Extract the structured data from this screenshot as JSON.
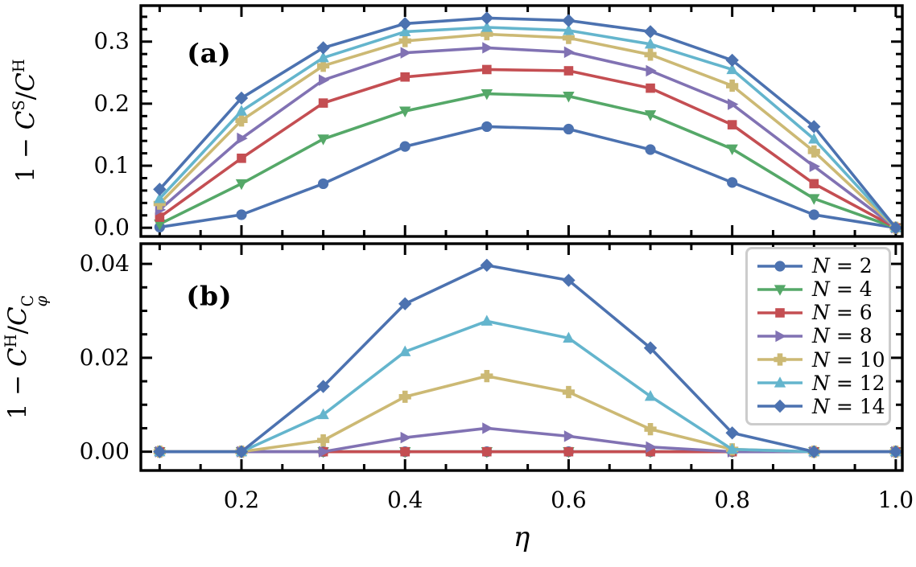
{
  "figure": {
    "background": "#ffffff",
    "axis_color": "#000000",
    "legend_border_color": "#cccccc"
  },
  "chart_data": [
    {
      "type": "line",
      "panel": "(a)",
      "x": [
        0.1,
        0.2,
        0.3,
        0.4,
        0.5,
        0.6,
        0.7,
        0.8,
        0.9,
        1.0
      ],
      "xlabel": "",
      "ylabel": "1 − C^S/C^H",
      "ylabel_parts": [
        {
          "kind": "normal",
          "text": "1 − "
        },
        {
          "kind": "italic",
          "text": "C"
        },
        {
          "kind": "sup",
          "text": "S"
        },
        {
          "kind": "normal",
          "text": "/"
        },
        {
          "kind": "italic",
          "text": "C"
        },
        {
          "kind": "sup",
          "text": "H"
        }
      ],
      "xlim": [
        0.077,
        1.008
      ],
      "ylim": [
        -0.014,
        0.358
      ],
      "xticks": [
        0.2,
        0.4,
        0.6,
        0.8,
        1.0
      ],
      "xtick_labels": [
        "",
        "",
        "",
        "",
        ""
      ],
      "x_minor_step": 0.05,
      "yticks": [
        0.0,
        0.1,
        0.2,
        0.3
      ],
      "ytick_labels": [
        "0.0",
        "0.1",
        "0.2",
        "0.3"
      ],
      "y_minor_step": 0.02,
      "grid": false,
      "series": [
        {
          "name": "N = 2",
          "color": "#4C72B0",
          "marker": "circle",
          "values": [
            0.001,
            0.021,
            0.071,
            0.131,
            0.163,
            0.159,
            0.126,
            0.073,
            0.021,
            0.0
          ]
        },
        {
          "name": "N = 4",
          "color": "#55A868",
          "marker": "triangle-down",
          "values": [
            0.006,
            0.071,
            0.143,
            0.188,
            0.216,
            0.212,
            0.182,
            0.127,
            0.047,
            0.0
          ]
        },
        {
          "name": "N = 6",
          "color": "#C44E52",
          "marker": "square",
          "values": [
            0.017,
            0.112,
            0.201,
            0.243,
            0.255,
            0.253,
            0.225,
            0.166,
            0.071,
            0.0
          ]
        },
        {
          "name": "N = 8",
          "color": "#8172B3",
          "marker": "triangle-right",
          "values": [
            0.029,
            0.144,
            0.238,
            0.282,
            0.29,
            0.283,
            0.253,
            0.199,
            0.099,
            0.0
          ]
        },
        {
          "name": "N = 10",
          "color": "#CCB974",
          "marker": "plus",
          "values": [
            0.039,
            0.173,
            0.261,
            0.301,
            0.312,
            0.306,
            0.279,
            0.229,
            0.123,
            0.0
          ]
        },
        {
          "name": "N = 12",
          "color": "#64B5CD",
          "marker": "triangle-up",
          "values": [
            0.047,
            0.188,
            0.274,
            0.316,
            0.323,
            0.318,
            0.296,
            0.255,
            0.143,
            0.0
          ]
        },
        {
          "name": "N = 14",
          "color": "#4C72B0",
          "marker": "diamond",
          "values": [
            0.062,
            0.209,
            0.29,
            0.329,
            0.338,
            0.334,
            0.316,
            0.27,
            0.163,
            0.0
          ]
        }
      ]
    },
    {
      "type": "line",
      "panel": "(b)",
      "x": [
        0.1,
        0.2,
        0.3,
        0.4,
        0.5,
        0.6,
        0.7,
        0.8,
        0.9,
        1.0
      ],
      "xlabel": "η",
      "ylabel": "1 − C^H/C^C_φ",
      "ylabel_parts": [
        {
          "kind": "normal",
          "text": "1 − "
        },
        {
          "kind": "italic",
          "text": "C"
        },
        {
          "kind": "sup",
          "text": "H"
        },
        {
          "kind": "normal",
          "text": "/"
        },
        {
          "kind": "italic",
          "text": "C"
        },
        {
          "kind": "stack",
          "sup": "C",
          "sub": "φ"
        }
      ],
      "xlim": [
        0.077,
        1.008
      ],
      "ylim": [
        -0.004,
        0.0443
      ],
      "xticks": [
        0.2,
        0.4,
        0.6,
        0.8,
        1.0
      ],
      "xtick_labels": [
        "0.2",
        "0.4",
        "0.6",
        "0.8",
        "1.0"
      ],
      "x_minor_step": 0.05,
      "yticks": [
        0.0,
        0.02,
        0.04
      ],
      "ytick_labels": [
        "0.00",
        "0.02",
        "0.04"
      ],
      "y_minor_step": 0.005,
      "grid": false,
      "legend": {
        "position": "upper right"
      },
      "series": [
        {
          "name": "N = 2",
          "color": "#4C72B0",
          "marker": "circle",
          "values": [
            0,
            0,
            0,
            0,
            0,
            0,
            0,
            0,
            0,
            0
          ]
        },
        {
          "name": "N = 4",
          "color": "#55A868",
          "marker": "triangle-down",
          "values": [
            0,
            0,
            0,
            0,
            0,
            0,
            0,
            0,
            0,
            0
          ]
        },
        {
          "name": "N = 6",
          "color": "#C44E52",
          "marker": "square",
          "values": [
            0,
            0,
            0,
            0,
            0,
            0,
            0,
            0,
            0,
            0
          ]
        },
        {
          "name": "N = 8",
          "color": "#8172B3",
          "marker": "triangle-right",
          "values": [
            0,
            0,
            0,
            0.003,
            0.005,
            0.0033,
            0.001,
            0,
            0,
            0
          ]
        },
        {
          "name": "N = 10",
          "color": "#CCB974",
          "marker": "plus",
          "values": [
            0,
            0,
            0.0024,
            0.0117,
            0.0161,
            0.0127,
            0.0048,
            0.0005,
            0,
            0
          ]
        },
        {
          "name": "N = 12",
          "color": "#64B5CD",
          "marker": "triangle-up",
          "values": [
            0,
            0,
            0.0079,
            0.0213,
            0.0278,
            0.0242,
            0.0118,
            0.0005,
            0,
            0
          ]
        },
        {
          "name": "N = 14",
          "color": "#4C72B0",
          "marker": "diamond",
          "values": [
            0,
            0,
            0.0139,
            0.0315,
            0.0397,
            0.0365,
            0.0221,
            0.004,
            0,
            0
          ]
        }
      ]
    }
  ]
}
